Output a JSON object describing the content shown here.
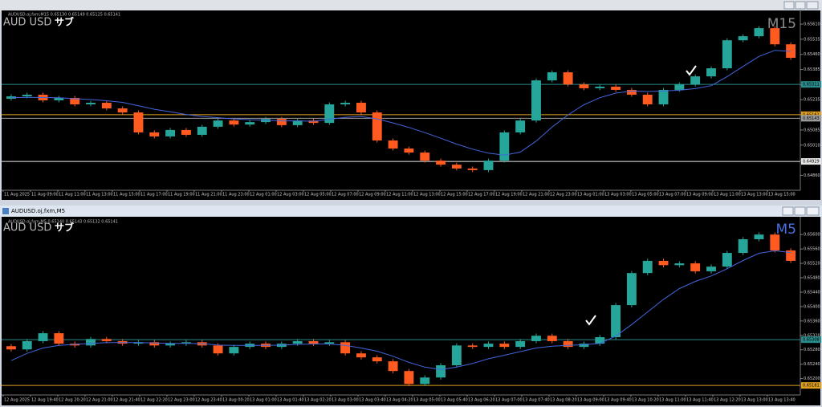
{
  "windows": [
    {
      "info": "AUDUSD.oj,fxm,M15 0.65130 0.65149 0.65125 0.65141",
      "symbol_label": "AUD USD",
      "tag": "サブ",
      "timeframe": "M15",
      "chart": {
        "type": "candlestick",
        "up_color": "#26a69a",
        "down_color": "#ff5a1f",
        "ma_color": "#4466dd",
        "timeframe_color": "#8a8a8a",
        "ylim": [
          0.64794,
          0.65674
        ],
        "yticks": [
          {
            "value": 0.6561,
            "label": "0.65610"
          },
          {
            "value": 0.65535,
            "label": "0.65535"
          },
          {
            "value": 0.6546,
            "label": "0.65460"
          },
          {
            "value": 0.65385,
            "label": "0.65385"
          },
          {
            "value": 0.6531,
            "label": "0.65310"
          },
          {
            "value": 0.65235,
            "label": "0.65235"
          },
          {
            "value": 0.6516,
            "label": "0.65160"
          },
          {
            "value": 0.65085,
            "label": "0.65085"
          },
          {
            "value": 0.6501,
            "label": "0.65010"
          },
          {
            "value": 0.64935,
            "label": "0.64935"
          },
          {
            "value": 0.6486,
            "label": "0.64860"
          }
        ],
        "levels": [
          {
            "value": 0.65311,
            "label": "0.65311",
            "color": "#2a8c8c"
          },
          {
            "value": 0.65161,
            "label": "0.65161",
            "color": "#e0a020"
          },
          {
            "value": 0.65143,
            "label": "0.65143",
            "color": "#9a9a9a"
          },
          {
            "value": 0.64929,
            "label": "0.64929",
            "color": "#e8e8e8"
          }
        ],
        "candles": [
          [
            0.6524,
            0.65262,
            0.6523,
            0.65252
          ],
          [
            0.65252,
            0.6527,
            0.65242,
            0.6526
          ],
          [
            0.6526,
            0.6527,
            0.65222,
            0.65232
          ],
          [
            0.65232,
            0.65254,
            0.65222,
            0.65244
          ],
          [
            0.65244,
            0.65254,
            0.65202,
            0.65212
          ],
          [
            0.65212,
            0.6523,
            0.65202,
            0.6522
          ],
          [
            0.6522,
            0.6523,
            0.65182,
            0.65192
          ],
          [
            0.65192,
            0.65202,
            0.65162,
            0.65172
          ],
          [
            0.65172,
            0.65182,
            0.65063,
            0.65073
          ],
          [
            0.65073,
            0.65083,
            0.65043,
            0.65053
          ],
          [
            0.65053,
            0.65095,
            0.65043,
            0.65085
          ],
          [
            0.65085,
            0.65095,
            0.65051,
            0.65061
          ],
          [
            0.65061,
            0.65111,
            0.65051,
            0.65101
          ],
          [
            0.65101,
            0.65142,
            0.65091,
            0.65132
          ],
          [
            0.65132,
            0.65142,
            0.65102,
            0.65112
          ],
          [
            0.65112,
            0.65134,
            0.65102,
            0.65124
          ],
          [
            0.65124,
            0.6515,
            0.65114,
            0.6514
          ],
          [
            0.6514,
            0.6515,
            0.65099,
            0.65109
          ],
          [
            0.65109,
            0.65142,
            0.65099,
            0.65132
          ],
          [
            0.65132,
            0.65142,
            0.6511,
            0.6512
          ],
          [
            0.6512,
            0.65222,
            0.6511,
            0.65212
          ],
          [
            0.65212,
            0.6523,
            0.65202,
            0.6522
          ],
          [
            0.6522,
            0.6523,
            0.65162,
            0.65172
          ],
          [
            0.65172,
            0.65182,
            0.65023,
            0.65033
          ],
          [
            0.65033,
            0.65043,
            0.64983,
            0.64993
          ],
          [
            0.64993,
            0.65003,
            0.64963,
            0.64973
          ],
          [
            0.64973,
            0.64983,
            0.64923,
            0.64933
          ],
          [
            0.64933,
            0.64943,
            0.64903,
            0.64913
          ],
          [
            0.64913,
            0.64923,
            0.64884,
            0.64894
          ],
          [
            0.64894,
            0.64904,
            0.64876,
            0.64886
          ],
          [
            0.64886,
            0.64943,
            0.64876,
            0.64933
          ],
          [
            0.64933,
            0.65083,
            0.64923,
            0.65073
          ],
          [
            0.65073,
            0.65142,
            0.65063,
            0.65132
          ],
          [
            0.65132,
            0.65341,
            0.65122,
            0.65331
          ],
          [
            0.65331,
            0.65381,
            0.65321,
            0.65371
          ],
          [
            0.65371,
            0.65381,
            0.65301,
            0.65311
          ],
          [
            0.65311,
            0.65321,
            0.65282,
            0.65292
          ],
          [
            0.65292,
            0.6531,
            0.65282,
            0.653
          ],
          [
            0.653,
            0.6531,
            0.65274,
            0.65284
          ],
          [
            0.65284,
            0.65294,
            0.6525,
            0.6526
          ],
          [
            0.6526,
            0.6527,
            0.65202,
            0.65212
          ],
          [
            0.65212,
            0.65294,
            0.65202,
            0.65284
          ],
          [
            0.65284,
            0.65321,
            0.65274,
            0.65311
          ],
          [
            0.65311,
            0.65361,
            0.65301,
            0.65351
          ],
          [
            0.65351,
            0.65401,
            0.65341,
            0.65391
          ],
          [
            0.65391,
            0.6554,
            0.65381,
            0.6553
          ],
          [
            0.6553,
            0.6556,
            0.6552,
            0.6555
          ],
          [
            0.6555,
            0.656,
            0.6554,
            0.6559
          ],
          [
            0.6559,
            0.656,
            0.655,
            0.6551
          ],
          [
            0.6551,
            0.6552,
            0.65433,
            0.65443
          ]
        ],
        "ma": [
          0.65245,
          0.65247,
          0.65246,
          0.65245,
          0.6524,
          0.65236,
          0.6523,
          0.65222,
          0.65205,
          0.65188,
          0.65175,
          0.65162,
          0.65152,
          0.65146,
          0.6514,
          0.65136,
          0.65134,
          0.6513,
          0.6513,
          0.65128,
          0.65138,
          0.65148,
          0.65152,
          0.6514,
          0.6512,
          0.65098,
          0.65072,
          0.65044,
          0.65015,
          0.6499,
          0.6497,
          0.6496,
          0.64975,
          0.6503,
          0.651,
          0.6516,
          0.6521,
          0.65245,
          0.65268,
          0.65278,
          0.65276,
          0.65278,
          0.65282,
          0.6529,
          0.65305,
          0.6535,
          0.654,
          0.6545,
          0.6548,
          0.65475
        ],
        "xlabels": [
          "11 Aug 2025",
          "11 Aug 09:00",
          "11 Aug 11:00",
          "11 Aug 13:00",
          "11 Aug 15:00",
          "11 Aug 17:00",
          "11 Aug 19:00",
          "11 Aug 21:00",
          "11 Aug 23:00",
          "12 Aug 01:00",
          "12 Aug 03:00",
          "12 Aug 05:00",
          "12 Aug 07:00",
          "12 Aug 09:00",
          "12 Aug 11:00",
          "12 Aug 13:00",
          "12 Aug 15:00",
          "12 Aug 17:00",
          "12 Aug 19:00",
          "12 Aug 21:00",
          "12 Aug 23:00",
          "13 Aug 01:00",
          "13 Aug 03:00",
          "13 Aug 05:00",
          "13 Aug 07:00",
          "13 Aug 09:00",
          "13 Aug 11:00",
          "13 Aug 13:00",
          "13 Aug 15:00"
        ]
      }
    },
    {
      "title": "AUDUSD.oj,fxm,M5",
      "info": "AUDUSD.oj,fxm,M5 0.65140 0.65143 0.65132 0.65141",
      "symbol_label": "AUD USD",
      "tag": "サブ",
      "timeframe": "M5",
      "chart": {
        "type": "candlestick",
        "up_color": "#26a69a",
        "down_color": "#ff5a1f",
        "ma_color": "#4466dd",
        "timeframe_color": "#4a6fe0",
        "ylim": [
          0.65159,
          0.65645
        ],
        "yticks": [
          {
            "value": 0.656,
            "label": "0.65600"
          },
          {
            "value": 0.6556,
            "label": "0.65560"
          },
          {
            "value": 0.6552,
            "label": "0.65520"
          },
          {
            "value": 0.6548,
            "label": "0.65480"
          },
          {
            "value": 0.6544,
            "label": "0.65440"
          },
          {
            "value": 0.654,
            "label": "0.65400"
          },
          {
            "value": 0.6536,
            "label": "0.65360"
          },
          {
            "value": 0.6532,
            "label": "0.65320"
          },
          {
            "value": 0.6528,
            "label": "0.65280"
          },
          {
            "value": 0.6524,
            "label": "0.65240"
          },
          {
            "value": 0.652,
            "label": "0.65200"
          }
        ],
        "levels": [
          {
            "value": 0.65308,
            "label": "0.65308",
            "color": "#2a8c8c"
          },
          {
            "value": 0.65181,
            "label": "0.65181",
            "color": "#e0a020"
          }
        ],
        "candles": [
          [
            0.6529,
            0.65296,
            0.65275,
            0.65281
          ],
          [
            0.65281,
            0.6531,
            0.65275,
            0.65304
          ],
          [
            0.65304,
            0.65332,
            0.65298,
            0.65326
          ],
          [
            0.65326,
            0.65332,
            0.65291,
            0.65297
          ],
          [
            0.65297,
            0.65303,
            0.65286,
            0.65292
          ],
          [
            0.65292,
            0.65316,
            0.65286,
            0.6531
          ],
          [
            0.6531,
            0.65316,
            0.65298,
            0.65304
          ],
          [
            0.65304,
            0.6531,
            0.65291,
            0.65297
          ],
          [
            0.65297,
            0.65307,
            0.65291,
            0.65301
          ],
          [
            0.65301,
            0.65307,
            0.65286,
            0.65292
          ],
          [
            0.65292,
            0.65303,
            0.65286,
            0.65297
          ],
          [
            0.65297,
            0.65307,
            0.65291,
            0.65301
          ],
          [
            0.65301,
            0.65307,
            0.65286,
            0.65292
          ],
          [
            0.65292,
            0.65298,
            0.65264,
            0.6527
          ],
          [
            0.6527,
            0.65294,
            0.65264,
            0.65288
          ],
          [
            0.65288,
            0.65303,
            0.65282,
            0.65297
          ],
          [
            0.65297,
            0.65303,
            0.65282,
            0.65288
          ],
          [
            0.65288,
            0.65303,
            0.65282,
            0.65297
          ],
          [
            0.65297,
            0.6531,
            0.65291,
            0.65304
          ],
          [
            0.65304,
            0.6531,
            0.65291,
            0.65297
          ],
          [
            0.65297,
            0.65307,
            0.65291,
            0.65301
          ],
          [
            0.65301,
            0.65307,
            0.65264,
            0.6527
          ],
          [
            0.6527,
            0.65276,
            0.65253,
            0.65259
          ],
          [
            0.65259,
            0.65265,
            0.65242,
            0.65248
          ],
          [
            0.65248,
            0.65254,
            0.65215,
            0.65221
          ],
          [
            0.65221,
            0.65227,
            0.65179,
            0.65185
          ],
          [
            0.65185,
            0.65209,
            0.65179,
            0.65203
          ],
          [
            0.65203,
            0.65243,
            0.65197,
            0.65237
          ],
          [
            0.65237,
            0.65298,
            0.65231,
            0.65292
          ],
          [
            0.65292,
            0.65298,
            0.65282,
            0.65288
          ],
          [
            0.65288,
            0.65303,
            0.65282,
            0.65297
          ],
          [
            0.65297,
            0.65303,
            0.65282,
            0.65288
          ],
          [
            0.65288,
            0.6531,
            0.65282,
            0.65304
          ],
          [
            0.65304,
            0.65325,
            0.65298,
            0.65319
          ],
          [
            0.65319,
            0.65325,
            0.65298,
            0.65304
          ],
          [
            0.65304,
            0.6531,
            0.65282,
            0.65288
          ],
          [
            0.65288,
            0.65303,
            0.65282,
            0.65297
          ],
          [
            0.65297,
            0.65321,
            0.65291,
            0.65315
          ],
          [
            0.65315,
            0.6541,
            0.65309,
            0.65404
          ],
          [
            0.65404,
            0.65499,
            0.65398,
            0.65493
          ],
          [
            0.65493,
            0.65533,
            0.65487,
            0.65527
          ],
          [
            0.65527,
            0.65533,
            0.65509,
            0.65515
          ],
          [
            0.65515,
            0.65526,
            0.65509,
            0.6552
          ],
          [
            0.6552,
            0.65526,
            0.65492,
            0.65498
          ],
          [
            0.65498,
            0.65517,
            0.65492,
            0.65511
          ],
          [
            0.65511,
            0.65555,
            0.65505,
            0.65549
          ],
          [
            0.65549,
            0.65593,
            0.65543,
            0.65587
          ],
          [
            0.65587,
            0.65606,
            0.65581,
            0.656
          ],
          [
            0.656,
            0.65606,
            0.6555,
            0.65556
          ],
          [
            0.65556,
            0.65562,
            0.65521,
            0.65527
          ]
        ],
        "ma": [
          0.6525,
          0.6527,
          0.65285,
          0.65292,
          0.65295,
          0.65298,
          0.653,
          0.653,
          0.653,
          0.65299,
          0.65298,
          0.65298,
          0.65297,
          0.65293,
          0.65292,
          0.65292,
          0.65292,
          0.65293,
          0.65295,
          0.65296,
          0.65296,
          0.65292,
          0.65285,
          0.65276,
          0.65262,
          0.65245,
          0.65232,
          0.65225,
          0.65232,
          0.65242,
          0.65255,
          0.65265,
          0.65275,
          0.65285,
          0.6529,
          0.65292,
          0.65294,
          0.65298,
          0.65318,
          0.6535,
          0.65385,
          0.6542,
          0.6545,
          0.6547,
          0.65485,
          0.65505,
          0.65528,
          0.65548,
          0.65555,
          0.6555
        ],
        "xlabels": [
          "12 Aug 2025",
          "12 Aug 19:40",
          "12 Aug 20:20",
          "12 Aug 21:00",
          "12 Aug 21:40",
          "12 Aug 22:20",
          "12 Aug 23:00",
          "12 Aug 23:40",
          "13 Aug 00:20",
          "13 Aug 01:00",
          "13 Aug 01:40",
          "13 Aug 02:20",
          "13 Aug 03:00",
          "13 Aug 03:40",
          "13 Aug 04:20",
          "13 Aug 05:00",
          "13 Aug 05:40",
          "13 Aug 06:20",
          "13 Aug 07:00",
          "13 Aug 07:40",
          "13 Aug 08:20",
          "13 Aug 09:00",
          "13 Aug 09:40",
          "13 Aug 10:20",
          "13 Aug 11:00",
          "13 Aug 11:40",
          "13 Aug 12:20",
          "13 Aug 13:00",
          "13 Aug 13:40"
        ]
      }
    }
  ]
}
